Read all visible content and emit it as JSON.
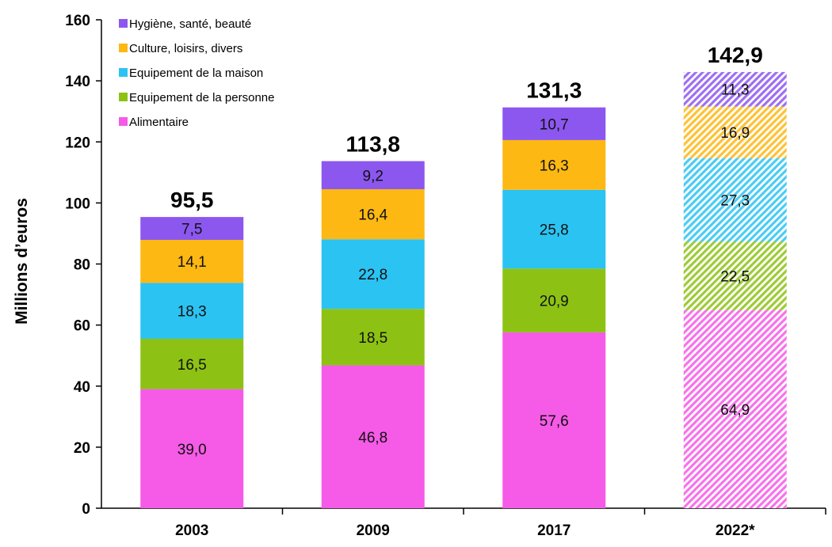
{
  "chart_data": {
    "type": "bar",
    "stacked": true,
    "title": "",
    "xlabel": "",
    "ylabel": "Millions d’euros",
    "ylim": [
      0,
      160
    ],
    "yticks": [
      0,
      20,
      40,
      60,
      80,
      100,
      120,
      140,
      160
    ],
    "categories": [
      "2003",
      "2009",
      "2017",
      "2022*"
    ],
    "totals": [
      "95,5",
      "113,8",
      "131,3",
      "142,9"
    ],
    "projected_categories": [
      "2022*"
    ],
    "legend_position": "top-left",
    "series": [
      {
        "name": "Alimentaire",
        "color": "#f55be6",
        "values": [
          39.0,
          46.8,
          57.6,
          64.9
        ],
        "labels": [
          "39,0",
          "46,8",
          "57,6",
          "64,9"
        ]
      },
      {
        "name": "Equipement de la personne",
        "color": "#8dc214",
        "values": [
          16.5,
          18.5,
          20.9,
          22.5
        ],
        "labels": [
          "16,5",
          "18,5",
          "20,9",
          "22,5"
        ]
      },
      {
        "name": "Equipement de la maison",
        "color": "#2bc3f2",
        "values": [
          18.3,
          22.8,
          25.8,
          27.3
        ],
        "labels": [
          "18,3",
          "22,8",
          "25,8",
          "27,3"
        ]
      },
      {
        "name": "Culture, loisirs, divers",
        "color": "#fdb814",
        "values": [
          14.1,
          16.4,
          16.3,
          16.9
        ],
        "labels": [
          "14,1",
          "16,4",
          "16,3",
          "16,9"
        ]
      },
      {
        "name": "Hygiène, santé, beauté",
        "color": "#8c57ef",
        "values": [
          7.5,
          9.2,
          10.7,
          11.3
        ],
        "labels": [
          "7,5",
          "9,2",
          "10,7",
          "11,3"
        ]
      }
    ]
  }
}
